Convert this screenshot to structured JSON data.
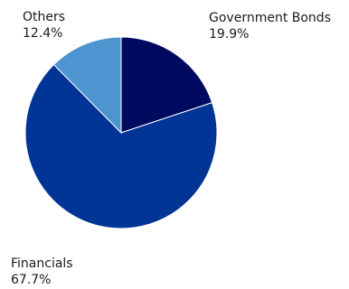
{
  "chart_data": {
    "type": "pie",
    "slices": [
      {
        "label": "Government Bonds",
        "value": 19.9,
        "value_label": "19.9%",
        "color": "#000a5e"
      },
      {
        "label": "Financials",
        "value": 67.7,
        "value_label": "67.7%",
        "color": "#003596"
      },
      {
        "label": "Others",
        "value": 12.4,
        "value_label": "12.4%",
        "color": "#4e94d1"
      }
    ],
    "start_angle_deg": 0,
    "direction": "clockwise",
    "legend": "none"
  }
}
